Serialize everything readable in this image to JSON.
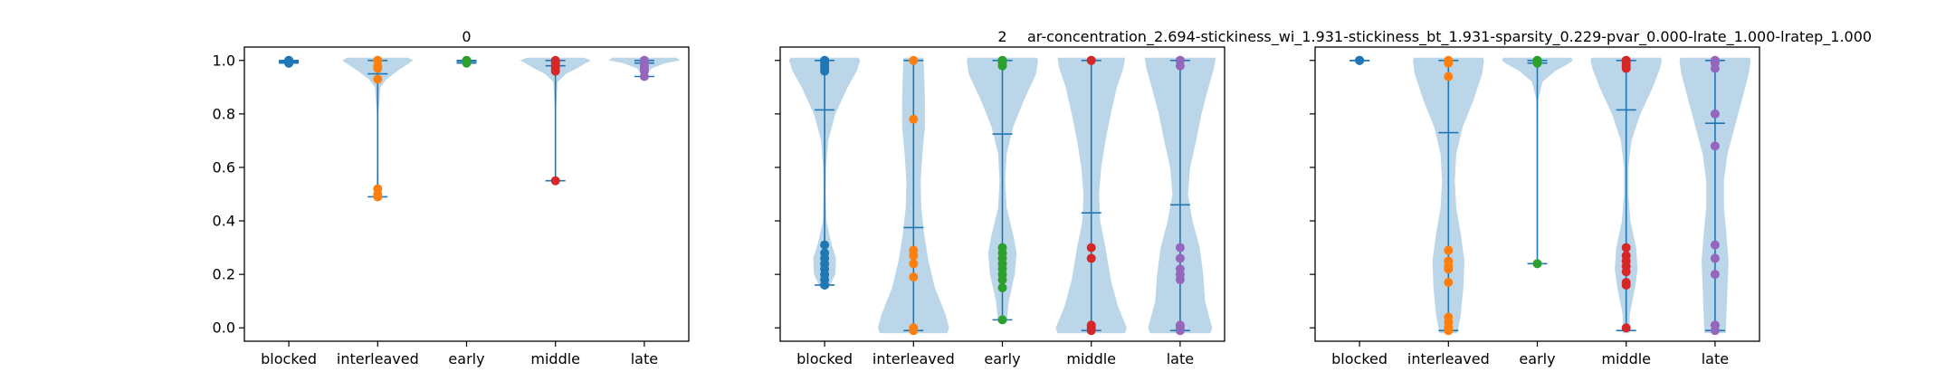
{
  "figure": {
    "suptitle": "ar-concentration_2.694-stickiness_wi_1.931-stickiness_bt_1.931-sparsity_0.229-pvar_0.000-lrate_1.000-lratep_1.000"
  },
  "colors": {
    "violin_fill": "#1f77b4",
    "violin_line": "#1f77b4",
    "axes": "#000000",
    "points": [
      "#1f77b4",
      "#ff7f0e",
      "#2ca02c",
      "#d62728",
      "#9467bd"
    ]
  },
  "chart_data": [
    {
      "type": "violin",
      "title": "0",
      "categories": [
        "blocked",
        "interleaved",
        "early",
        "middle",
        "late"
      ],
      "ylim": [
        -0.05,
        1.05
      ],
      "yticks": [
        "0.0",
        "0.2",
        "0.4",
        "0.6",
        "0.8",
        "1.0"
      ],
      "yticks_values": [
        0.0,
        0.2,
        0.4,
        0.6,
        0.8,
        1.0
      ],
      "show_yticklabels": true,
      "series": [
        {
          "min": 0.99,
          "max": 1.0,
          "mean": 0.995,
          "width": 0.25,
          "points": [
            1.0,
            1.0,
            0.995,
            0.99,
            0.99
          ],
          "density": [
            [
              0.985,
              0.1
            ],
            [
              0.99,
              0.7
            ],
            [
              0.995,
              1.0
            ],
            [
              1.0,
              0.7
            ],
            [
              1.005,
              0.1
            ]
          ]
        },
        {
          "min": 0.49,
          "max": 1.0,
          "mean": 0.95,
          "width": 1.0,
          "points": [
            1.0,
            1.0,
            0.98,
            0.97,
            0.93,
            0.52,
            0.5,
            0.49
          ],
          "density": [
            [
              0.48,
              0.02
            ],
            [
              0.52,
              0.03
            ],
            [
              0.6,
              0.02
            ],
            [
              0.8,
              0.02
            ],
            [
              0.9,
              0.08
            ],
            [
              0.93,
              0.25
            ],
            [
              0.96,
              0.55
            ],
            [
              1.0,
              1.0
            ],
            [
              1.01,
              0.85
            ]
          ]
        },
        {
          "min": 0.99,
          "max": 1.0,
          "mean": 0.997,
          "width": 0.3,
          "points": [
            1.0,
            1.0,
            0.995,
            0.99
          ],
          "density": [
            [
              0.985,
              0.1
            ],
            [
              0.99,
              0.6
            ],
            [
              0.995,
              1.0
            ],
            [
              1.0,
              0.9
            ],
            [
              1.005,
              0.2
            ]
          ]
        },
        {
          "min": 0.55,
          "max": 1.0,
          "mean": 0.98,
          "width": 1.0,
          "points": [
            1.0,
            0.99,
            0.98,
            0.97,
            0.96,
            0.55
          ],
          "density": [
            [
              0.54,
              0.02
            ],
            [
              0.6,
              0.01
            ],
            [
              0.8,
              0.01
            ],
            [
              0.92,
              0.06
            ],
            [
              0.95,
              0.3
            ],
            [
              0.97,
              0.6
            ],
            [
              0.99,
              0.85
            ],
            [
              1.0,
              1.0
            ],
            [
              1.01,
              0.8
            ]
          ]
        },
        {
          "min": 0.94,
          "max": 1.0,
          "mean": 0.99,
          "width": 1.0,
          "points": [
            1.0,
            1.0,
            0.99,
            0.98,
            0.97,
            0.96,
            0.94
          ],
          "density": [
            [
              0.93,
              0.04
            ],
            [
              0.95,
              0.1
            ],
            [
              0.97,
              0.2
            ],
            [
              0.99,
              0.6
            ],
            [
              1.0,
              1.0
            ],
            [
              1.01,
              0.9
            ]
          ]
        }
      ]
    },
    {
      "type": "violin",
      "title": "2",
      "categories": [
        "blocked",
        "interleaved",
        "early",
        "middle",
        "late"
      ],
      "ylim": [
        -0.05,
        1.05
      ],
      "yticks": [
        "0.0",
        "0.2",
        "0.4",
        "0.6",
        "0.8",
        "1.0"
      ],
      "yticks_values": [
        0.0,
        0.2,
        0.4,
        0.6,
        0.8,
        1.0
      ],
      "show_yticklabels": false,
      "series": [
        {
          "min": 0.16,
          "max": 1.0,
          "mean": 0.815,
          "width": 1.0,
          "points": [
            1.0,
            1.0,
            0.99,
            0.98,
            0.97,
            0.96,
            0.31,
            0.28,
            0.26,
            0.24,
            0.22,
            0.2,
            0.18,
            0.16
          ],
          "density": [
            [
              0.15,
              0.12
            ],
            [
              0.2,
              0.3
            ],
            [
              0.26,
              0.32
            ],
            [
              0.32,
              0.18
            ],
            [
              0.4,
              0.05
            ],
            [
              0.5,
              0.03
            ],
            [
              0.6,
              0.04
            ],
            [
              0.7,
              0.1
            ],
            [
              0.8,
              0.3
            ],
            [
              0.9,
              0.65
            ],
            [
              0.96,
              0.9
            ],
            [
              1.0,
              1.0
            ],
            [
              1.01,
              0.95
            ]
          ]
        },
        {
          "min": -0.01,
          "max": 1.0,
          "mean": 0.375,
          "width": 1.0,
          "points": [
            1.0,
            0.78,
            0.29,
            0.27,
            0.24,
            0.19,
            0.0,
            -0.01
          ],
          "density": [
            [
              -0.02,
              0.95
            ],
            [
              0.0,
              1.0
            ],
            [
              0.05,
              0.9
            ],
            [
              0.15,
              0.6
            ],
            [
              0.25,
              0.42
            ],
            [
              0.35,
              0.3
            ],
            [
              0.45,
              0.22
            ],
            [
              0.55,
              0.2
            ],
            [
              0.65,
              0.25
            ],
            [
              0.75,
              0.32
            ],
            [
              0.85,
              0.32
            ],
            [
              0.95,
              0.3
            ],
            [
              1.01,
              0.28
            ]
          ]
        },
        {
          "min": 0.03,
          "max": 1.0,
          "mean": 0.725,
          "width": 1.0,
          "points": [
            1.0,
            1.0,
            0.99,
            0.98,
            0.3,
            0.28,
            0.26,
            0.24,
            0.22,
            0.2,
            0.18,
            0.15,
            0.03
          ],
          "density": [
            [
              0.02,
              0.12
            ],
            [
              0.1,
              0.18
            ],
            [
              0.2,
              0.35
            ],
            [
              0.28,
              0.4
            ],
            [
              0.35,
              0.3
            ],
            [
              0.45,
              0.12
            ],
            [
              0.55,
              0.08
            ],
            [
              0.65,
              0.12
            ],
            [
              0.75,
              0.3
            ],
            [
              0.85,
              0.6
            ],
            [
              0.95,
              0.95
            ],
            [
              1.0,
              1.0
            ],
            [
              1.01,
              0.98
            ]
          ]
        },
        {
          "min": -0.01,
          "max": 1.0,
          "mean": 0.43,
          "width": 1.0,
          "points": [
            1.0,
            1.0,
            0.3,
            0.26,
            0.01,
            0.0,
            -0.01
          ],
          "density": [
            [
              -0.02,
              0.95
            ],
            [
              0.0,
              1.0
            ],
            [
              0.08,
              0.75
            ],
            [
              0.18,
              0.55
            ],
            [
              0.3,
              0.4
            ],
            [
              0.4,
              0.25
            ],
            [
              0.5,
              0.22
            ],
            [
              0.6,
              0.28
            ],
            [
              0.7,
              0.4
            ],
            [
              0.8,
              0.55
            ],
            [
              0.9,
              0.72
            ],
            [
              0.97,
              0.9
            ],
            [
              1.01,
              0.95
            ]
          ]
        },
        {
          "min": -0.01,
          "max": 1.0,
          "mean": 0.46,
          "width": 1.0,
          "points": [
            1.0,
            1.0,
            0.98,
            0.3,
            0.26,
            0.22,
            0.2,
            0.18,
            0.01,
            0.0,
            -0.01
          ],
          "density": [
            [
              -0.02,
              0.85
            ],
            [
              0.0,
              0.9
            ],
            [
              0.1,
              0.7
            ],
            [
              0.2,
              0.65
            ],
            [
              0.3,
              0.55
            ],
            [
              0.4,
              0.35
            ],
            [
              0.5,
              0.22
            ],
            [
              0.6,
              0.28
            ],
            [
              0.7,
              0.45
            ],
            [
              0.8,
              0.6
            ],
            [
              0.9,
              0.8
            ],
            [
              0.97,
              0.95
            ],
            [
              1.01,
              1.0
            ]
          ]
        }
      ]
    },
    {
      "type": "violin",
      "title": "",
      "categories": [
        "blocked",
        "interleaved",
        "early",
        "middle",
        "late"
      ],
      "ylim": [
        -0.05,
        1.05
      ],
      "yticks": [
        "0.0",
        "0.2",
        "0.4",
        "0.6",
        "0.8",
        "1.0"
      ],
      "yticks_values": [
        0.0,
        0.2,
        0.4,
        0.6,
        0.8,
        1.0
      ],
      "show_yticklabels": false,
      "series": [
        {
          "min": 1.0,
          "max": 1.0,
          "mean": 1.0,
          "width": 0.0,
          "points": [
            1.0,
            1.0,
            1.0
          ],
          "density": []
        },
        {
          "min": -0.01,
          "max": 1.0,
          "mean": 0.73,
          "width": 1.0,
          "points": [
            1.0,
            0.99,
            0.94,
            0.29,
            0.25,
            0.23,
            0.22,
            0.17,
            0.04,
            0.02,
            0.0,
            -0.01
          ],
          "density": [
            [
              -0.02,
              0.25
            ],
            [
              0.05,
              0.35
            ],
            [
              0.15,
              0.42
            ],
            [
              0.25,
              0.45
            ],
            [
              0.35,
              0.35
            ],
            [
              0.45,
              0.22
            ],
            [
              0.55,
              0.18
            ],
            [
              0.65,
              0.22
            ],
            [
              0.75,
              0.4
            ],
            [
              0.85,
              0.7
            ],
            [
              0.95,
              0.95
            ],
            [
              1.0,
              1.0
            ],
            [
              1.01,
              0.98
            ]
          ]
        },
        {
          "min": 0.24,
          "max": 1.0,
          "mean": 0.99,
          "width": 1.0,
          "points": [
            1.0,
            1.0,
            0.99,
            0.24
          ],
          "density": [
            [
              0.23,
              0.01
            ],
            [
              0.4,
              0.01
            ],
            [
              0.6,
              0.01
            ],
            [
              0.85,
              0.02
            ],
            [
              0.92,
              0.15
            ],
            [
              0.96,
              0.5
            ],
            [
              0.99,
              0.9
            ],
            [
              1.0,
              1.0
            ],
            [
              1.01,
              0.95
            ]
          ]
        },
        {
          "min": -0.01,
          "max": 1.0,
          "mean": 0.815,
          "width": 1.0,
          "points": [
            1.0,
            1.0,
            0.99,
            0.98,
            0.97,
            0.3,
            0.27,
            0.25,
            0.23,
            0.21,
            0.17,
            0.16,
            0.0
          ],
          "density": [
            [
              -0.02,
              0.1
            ],
            [
              0.05,
              0.1
            ],
            [
              0.15,
              0.25
            ],
            [
              0.22,
              0.32
            ],
            [
              0.3,
              0.28
            ],
            [
              0.4,
              0.12
            ],
            [
              0.5,
              0.06
            ],
            [
              0.6,
              0.06
            ],
            [
              0.7,
              0.15
            ],
            [
              0.8,
              0.4
            ],
            [
              0.9,
              0.75
            ],
            [
              0.97,
              0.95
            ],
            [
              1.0,
              1.0
            ],
            [
              1.01,
              0.98
            ]
          ]
        },
        {
          "min": -0.01,
          "max": 1.0,
          "mean": 0.765,
          "width": 1.0,
          "points": [
            1.0,
            1.0,
            0.99,
            0.97,
            0.8,
            0.68,
            0.31,
            0.26,
            0.2,
            0.01,
            -0.01
          ],
          "density": [
            [
              -0.02,
              0.3
            ],
            [
              0.05,
              0.32
            ],
            [
              0.15,
              0.35
            ],
            [
              0.25,
              0.38
            ],
            [
              0.35,
              0.32
            ],
            [
              0.45,
              0.25
            ],
            [
              0.55,
              0.25
            ],
            [
              0.65,
              0.35
            ],
            [
              0.75,
              0.55
            ],
            [
              0.85,
              0.75
            ],
            [
              0.95,
              0.95
            ],
            [
              1.0,
              1.0
            ],
            [
              1.01,
              0.98
            ]
          ]
        }
      ]
    }
  ]
}
